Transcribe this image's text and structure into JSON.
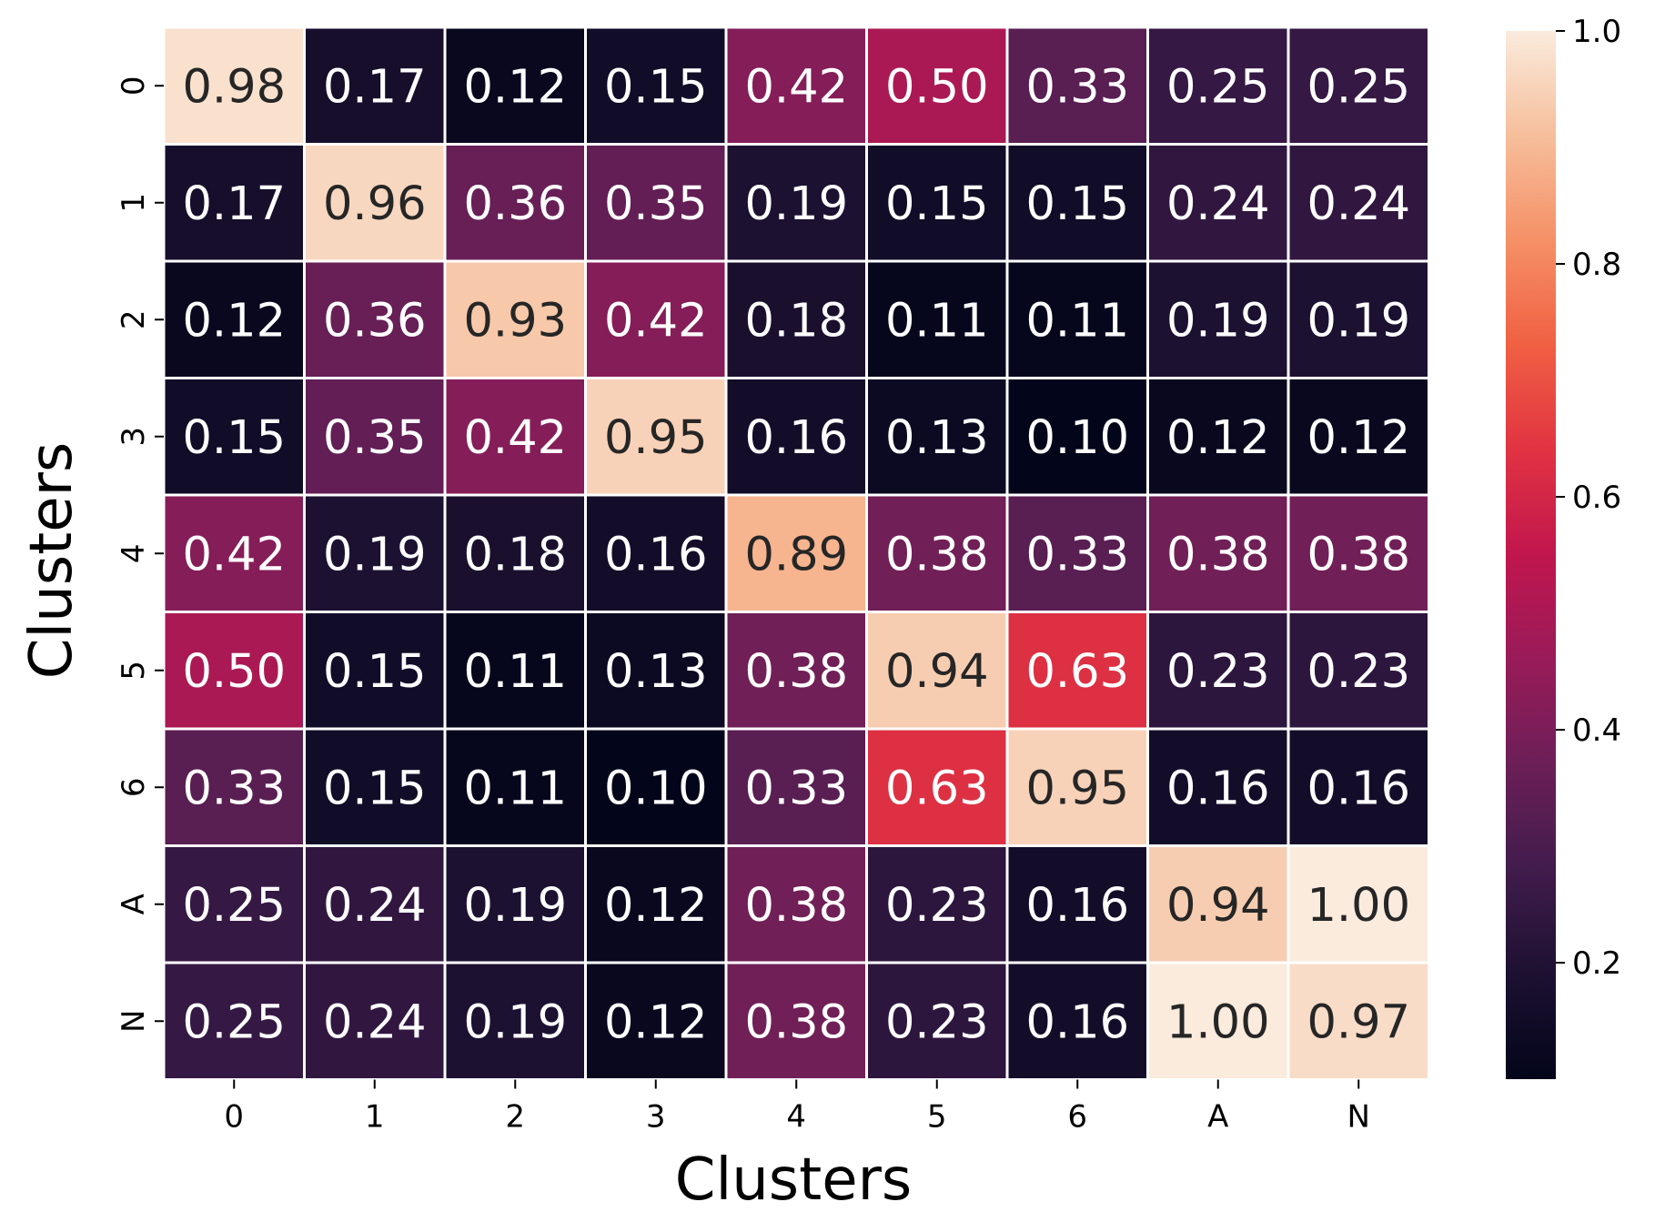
{
  "chart_data": {
    "type": "heatmap",
    "title": "",
    "xlabel": "Clusters",
    "ylabel": "Clusters",
    "x_categories": [
      "0",
      "1",
      "2",
      "3",
      "4",
      "5",
      "6",
      "A",
      "N"
    ],
    "y_categories": [
      "0",
      "1",
      "2",
      "3",
      "4",
      "5",
      "6",
      "A",
      "N"
    ],
    "values": [
      [
        0.98,
        0.17,
        0.12,
        0.15,
        0.42,
        0.5,
        0.33,
        0.25,
        0.25
      ],
      [
        0.17,
        0.96,
        0.36,
        0.35,
        0.19,
        0.15,
        0.15,
        0.24,
        0.24
      ],
      [
        0.12,
        0.36,
        0.93,
        0.42,
        0.18,
        0.11,
        0.11,
        0.19,
        0.19
      ],
      [
        0.15,
        0.35,
        0.42,
        0.95,
        0.16,
        0.13,
        0.1,
        0.12,
        0.12
      ],
      [
        0.42,
        0.19,
        0.18,
        0.16,
        0.89,
        0.38,
        0.33,
        0.38,
        0.38
      ],
      [
        0.5,
        0.15,
        0.11,
        0.13,
        0.38,
        0.94,
        0.63,
        0.23,
        0.23
      ],
      [
        0.33,
        0.15,
        0.11,
        0.1,
        0.33,
        0.63,
        0.95,
        0.16,
        0.16
      ],
      [
        0.25,
        0.24,
        0.19,
        0.12,
        0.38,
        0.23,
        0.16,
        0.94,
        1.0
      ],
      [
        0.25,
        0.24,
        0.19,
        0.12,
        0.38,
        0.23,
        0.16,
        1.0,
        0.97
      ]
    ],
    "annotation_format": "0.00",
    "colormap": "rocket",
    "colorbar": {
      "range": [
        0.1,
        1.0
      ],
      "ticks": [
        0.2,
        0.4,
        0.6,
        0.8,
        1.0
      ],
      "tick_labels": [
        "0.2",
        "0.4",
        "0.6",
        "0.8",
        "1.0"
      ]
    },
    "cell_border_color": "#ffffff",
    "dark_text_color": "#262626",
    "light_text_color": "#ffffff"
  }
}
